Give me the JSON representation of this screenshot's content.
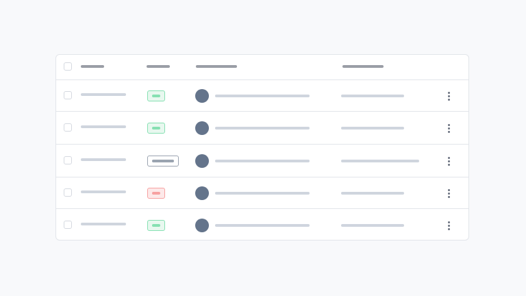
{
  "colors": {
    "success": "#86e0b2",
    "success_bg": "#e8f8ef",
    "danger": "#f7a1a1",
    "danger_bg": "#fde9e9",
    "neutral": "#9aa3b0",
    "neutral_bg": "#ffffff",
    "avatar": "#64748b"
  },
  "header": {
    "columns": 4,
    "has_select_all": true
  },
  "rows": [
    {
      "status": "success",
      "checked": false,
      "wide_last": false
    },
    {
      "status": "success",
      "checked": false,
      "wide_last": false
    },
    {
      "status": "neutral",
      "checked": false,
      "wide_last": true
    },
    {
      "status": "danger",
      "checked": false,
      "wide_last": false
    },
    {
      "status": "success",
      "checked": false,
      "wide_last": false
    }
  ],
  "icons": {
    "row_menu": "kebab-menu-icon",
    "avatar": "avatar-placeholder"
  }
}
